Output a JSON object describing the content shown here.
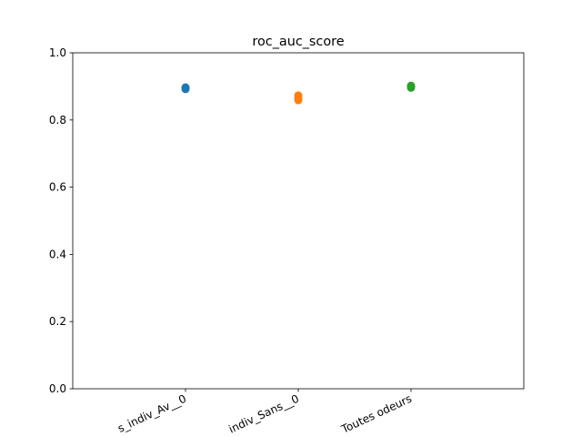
{
  "chart_data": {
    "type": "strip",
    "title": "roc_auc_score",
    "categories": [
      "s_indiv_Av__0",
      "indiv_Sans__0",
      "Toutes odeurs"
    ],
    "values": [
      [
        0.892,
        0.895,
        0.897
      ],
      [
        0.859,
        0.866,
        0.873
      ],
      [
        0.896,
        0.899,
        0.902
      ]
    ],
    "colors": [
      "#1f77b4",
      "#ff7f0e",
      "#2ca02c"
    ],
    "ylim": [
      0,
      1
    ],
    "yticks": [
      {
        "value": 0,
        "label": "0.0"
      },
      0.2,
      0.4,
      0.6,
      0.8,
      {
        "value": 1,
        "label": "1.0"
      }
    ],
    "grid": false
  }
}
